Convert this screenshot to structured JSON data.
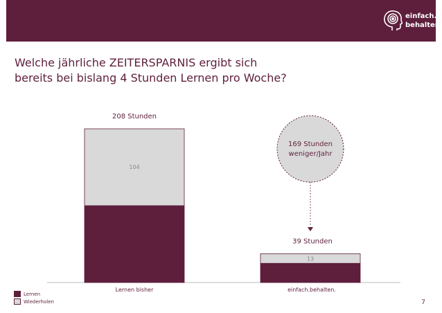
{
  "header": {
    "logo_line1": "einfach.",
    "logo_line2": "behalten.",
    "brand_color": "#5e1f3c"
  },
  "title": {
    "line1": "Welche jährliche ZEITERSPARNIS ergibt sich",
    "line2": "bereits bei bislang 4 Stunden Lernen pro Woche?"
  },
  "chart_data": {
    "type": "bar",
    "stacked": true,
    "categories": [
      "Lernen bisher",
      "einfach.behalten."
    ],
    "totals_labels": [
      "208 Stunden",
      "39 Stunden"
    ],
    "totals": [
      208,
      39
    ],
    "series": [
      {
        "name": "Lernen",
        "values": [
          104,
          26
        ],
        "color": "#5e1f3c",
        "labels": [
          "",
          ""
        ]
      },
      {
        "name": "Wiederholen",
        "values": [
          104,
          13
        ],
        "color": "#d9d9d9",
        "labels": [
          "104",
          "13"
        ]
      }
    ],
    "ylim": [
      0,
      208
    ],
    "annotation": {
      "line1": "169 Stunden",
      "line2": "weniger/Jahr"
    },
    "legend_position": "bottom-left"
  },
  "legend": [
    {
      "label": "Lernen",
      "color": "#5e1f3c"
    },
    {
      "label": "Wiederholen",
      "color": "#d9d9d9"
    }
  ],
  "page_number": "7"
}
